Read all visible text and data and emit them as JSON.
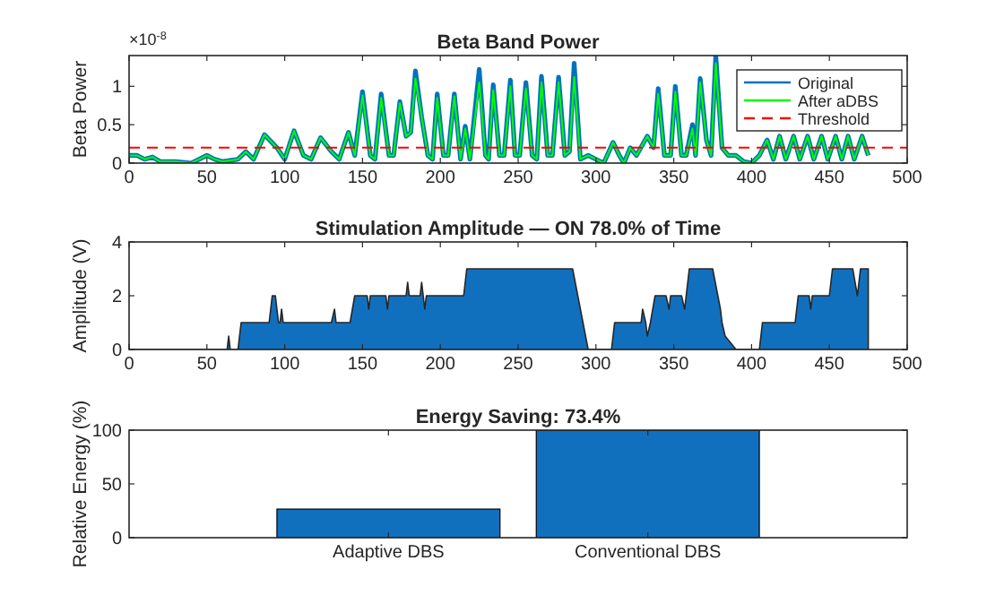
{
  "chart_data": [
    {
      "type": "line",
      "title": "Beta Band Power",
      "ylabel": "Beta Power",
      "annotations": [
        "×10$^{-8}$"
      ],
      "xlim": [
        0,
        500
      ],
      "xticks": [
        0,
        50,
        100,
        150,
        200,
        250,
        300,
        350,
        400,
        450,
        500
      ],
      "ylim": [
        0,
        1.4
      ],
      "yticks": [
        0,
        0.5,
        1
      ],
      "legend": "top right",
      "x": [
        0,
        5,
        10,
        15,
        20,
        30,
        40,
        50,
        55,
        60,
        70,
        75,
        80,
        87,
        95,
        100,
        106,
        112,
        117,
        123,
        130,
        135,
        141,
        145,
        150,
        155,
        158,
        162,
        167,
        170,
        174,
        178,
        181,
        184,
        188,
        192,
        195,
        198,
        202,
        205,
        209,
        213,
        216,
        219,
        225,
        229,
        231,
        234,
        238,
        241,
        245,
        248,
        251,
        255,
        259,
        262,
        265,
        269,
        272,
        276,
        280,
        283,
        286,
        290,
        295,
        300,
        305,
        311,
        315,
        318,
        322,
        326,
        333,
        337,
        340,
        344,
        348,
        351,
        355,
        358,
        362,
        364,
        367,
        371,
        374,
        377,
        381,
        385,
        390,
        395,
        400,
        405,
        410,
        414,
        418,
        422,
        427,
        431,
        436,
        440,
        445,
        449,
        454,
        458,
        462,
        466,
        471,
        475
      ],
      "series": [
        {
          "name": "Original",
          "color": "#0072bd",
          "values": [
            0.1,
            0.1,
            0.05,
            0.08,
            0.02,
            0.02,
            0,
            0.1,
            0.05,
            0.02,
            0.05,
            0.15,
            0.05,
            0.37,
            0.2,
            0.05,
            0.42,
            0.1,
            0.05,
            0.33,
            0.15,
            0.05,
            0.4,
            0.1,
            0.93,
            0.1,
            0.05,
            0.9,
            0.1,
            0.1,
            0.8,
            0.35,
            0.4,
            1.2,
            0.6,
            0.1,
            0.05,
            0.9,
            0.1,
            0.1,
            0.9,
            0.05,
            0.48,
            0.05,
            1.22,
            0.1,
            0.05,
            1.02,
            0.1,
            0.1,
            1.08,
            0.1,
            0.1,
            1.05,
            0.1,
            0.05,
            1.13,
            0.1,
            0.1,
            1.12,
            0.1,
            0.15,
            1.3,
            0.05,
            0.1,
            0.05,
            0,
            0.27,
            0.1,
            0,
            0.2,
            0.1,
            0.35,
            0.2,
            0.97,
            0.1,
            0.1,
            1,
            0.1,
            0.1,
            0.5,
            0.1,
            1.1,
            0.3,
            0.1,
            1.4,
            0.2,
            0.1,
            0.1,
            0.02,
            0,
            0.1,
            0.3,
            0.05,
            0.35,
            0.05,
            0.35,
            0.05,
            0.35,
            0.05,
            0.35,
            0.05,
            0.35,
            0.05,
            0.35,
            0.05,
            0.35,
            0.1
          ]
        },
        {
          "name": "After aDBS",
          "color": "#00ff00",
          "values": [
            0.1,
            0.1,
            0.05,
            0.08,
            0.02,
            0.02,
            0,
            0.1,
            0.05,
            0.02,
            0.05,
            0.15,
            0.05,
            0.37,
            0.2,
            0.05,
            0.42,
            0.1,
            0.05,
            0.33,
            0.15,
            0.05,
            0.4,
            0.1,
            0.88,
            0.1,
            0.05,
            0.85,
            0.1,
            0.1,
            0.78,
            0.35,
            0.4,
            1.1,
            0.6,
            0.1,
            0.05,
            0.85,
            0.1,
            0.1,
            0.87,
            0.05,
            0.45,
            0.05,
            1.05,
            0.1,
            0.05,
            0.95,
            0.1,
            0.1,
            1,
            0.1,
            0.1,
            0.97,
            0.1,
            0.05,
            1.05,
            0.1,
            0.1,
            1.05,
            0.1,
            0.15,
            1.12,
            0.05,
            0.1,
            0.05,
            0,
            0.27,
            0.1,
            0,
            0.2,
            0.1,
            0.35,
            0.2,
            0.9,
            0.1,
            0.1,
            0.93,
            0.1,
            0.1,
            0.45,
            0.1,
            1.05,
            0.3,
            0.1,
            1.3,
            0.2,
            0.1,
            0.1,
            0.02,
            0,
            0.1,
            0.3,
            0.05,
            0.35,
            0.05,
            0.35,
            0.05,
            0.35,
            0.05,
            0.35,
            0.05,
            0.35,
            0.05,
            0.35,
            0.05,
            0.35,
            0.1
          ]
        }
      ],
      "ref_lines": [
        {
          "axis": "y",
          "value": 0.2,
          "label": "Threshold",
          "color": "#ff0000",
          "line_style": "dashed"
        }
      ]
    },
    {
      "type": "area",
      "title": "Stimulation Amplitude — ON 78.0% of Time",
      "ylabel": "Amplitude (V)",
      "xlim": [
        0,
        500
      ],
      "xticks": [
        0,
        50,
        100,
        150,
        200,
        250,
        300,
        350,
        400,
        450,
        500
      ],
      "ylim": [
        0,
        4
      ],
      "yticks": [
        0,
        2,
        4
      ],
      "x": [
        0,
        63,
        64,
        65,
        70,
        72,
        90,
        92,
        94,
        96,
        97,
        98,
        99,
        130,
        132,
        133,
        142,
        145,
        153,
        154,
        155,
        165,
        166,
        167,
        178,
        179,
        180,
        187,
        188,
        190,
        191,
        215,
        217,
        285,
        295,
        310,
        312,
        329,
        330,
        332,
        333,
        335,
        338,
        345,
        347,
        348,
        355,
        357,
        360,
        375,
        380,
        381,
        383,
        390,
        405,
        407,
        428,
        430,
        437,
        438,
        439,
        450,
        452,
        465,
        468,
        470,
        475
      ],
      "series": [
        {
          "color": "#1170be",
          "values": [
            0,
            0,
            0.5,
            0,
            0,
            1,
            1,
            2,
            2,
            1,
            1,
            1.5,
            1,
            1,
            1.5,
            1,
            1,
            2,
            2,
            1.5,
            2,
            2,
            1.5,
            2,
            2,
            2.5,
            2,
            2,
            2.5,
            1.5,
            2,
            2,
            3,
            3,
            0,
            0,
            1,
            1,
            1.5,
            1,
            0.5,
            1,
            2,
            2,
            1.5,
            2,
            2,
            1.5,
            3,
            3,
            1.5,
            1,
            0.5,
            0,
            0,
            1,
            1,
            2,
            2,
            1.5,
            2,
            2,
            3,
            3,
            2,
            3,
            3
          ]
        }
      ]
    },
    {
      "type": "bar",
      "title": "Energy Saving: 73.4%",
      "ylabel": "Relative Energy (%)",
      "categories": [
        "Adaptive DBS",
        "Conventional DBS"
      ],
      "values": [
        26.6,
        100
      ],
      "color": "#1170be",
      "ylim": [
        0,
        100
      ],
      "yticks": [
        0,
        50,
        100
      ]
    }
  ]
}
